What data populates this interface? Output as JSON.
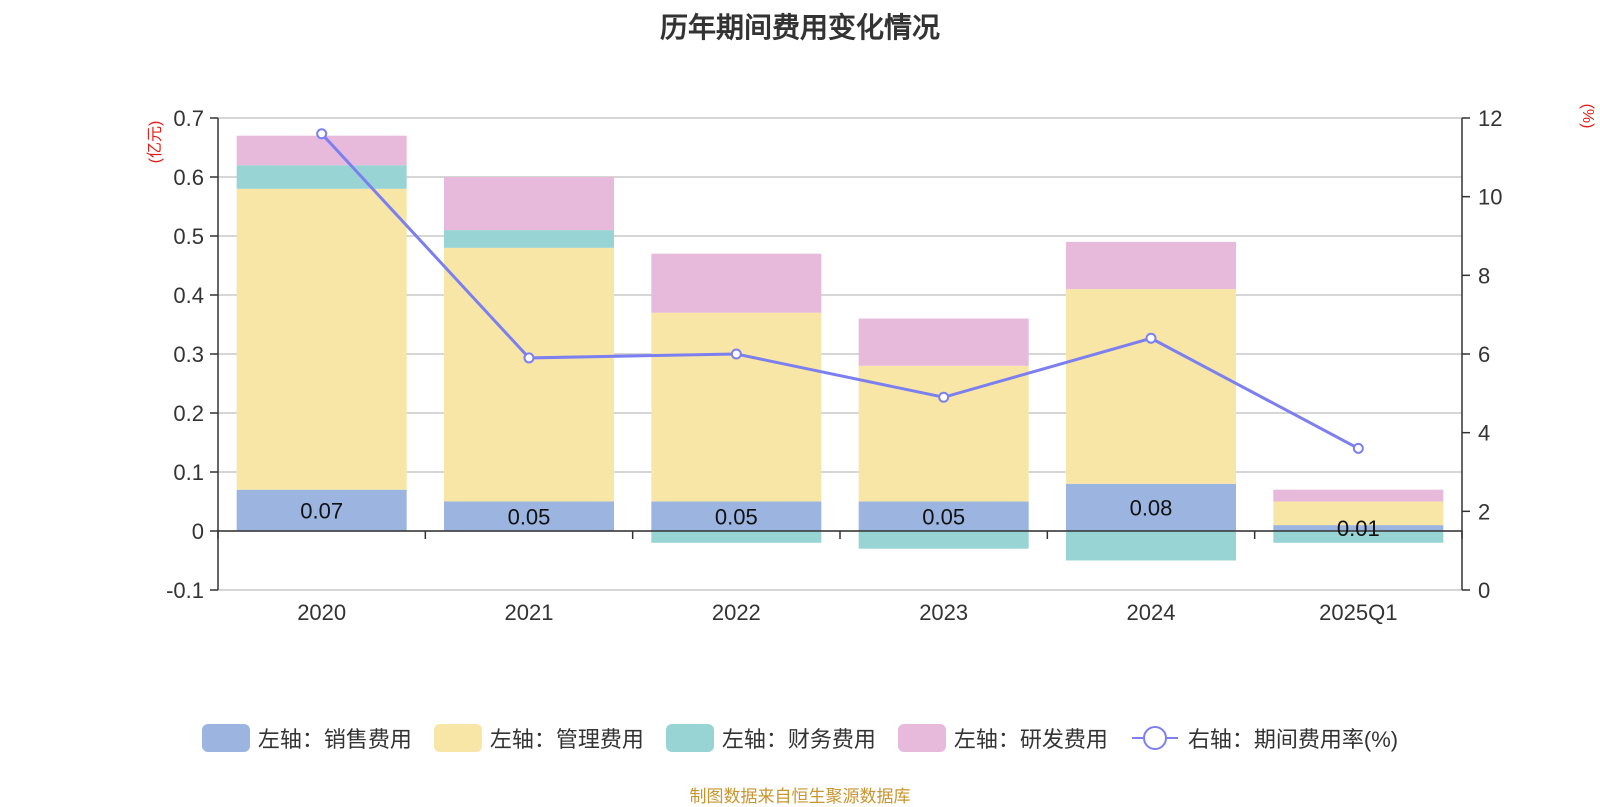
{
  "chart_data": {
    "type": "bar",
    "title": "历年期间费用变化情况",
    "categories": [
      "2020",
      "2021",
      "2022",
      "2023",
      "2024",
      "2025Q1"
    ],
    "y_left": {
      "unit_label": "(亿元)",
      "ylim": [
        -0.1,
        0.7
      ],
      "ticks": [
        "0.7",
        "0.6",
        "0.5",
        "0.4",
        "0.3",
        "0.2",
        "0.1",
        "0",
        "-0.1"
      ]
    },
    "y_right": {
      "unit_label": "(%)",
      "ylim": [
        0,
        12
      ],
      "ticks": [
        "12",
        "10",
        "8",
        "6",
        "4",
        "2",
        "0"
      ]
    },
    "series": [
      {
        "name": "左轴：销售费用",
        "type": "bar",
        "stack": true,
        "color": "#9bb5e0",
        "values": [
          0.07,
          0.05,
          0.05,
          0.05,
          0.08,
          0.01
        ],
        "labels": [
          "0.07",
          "0.05",
          "0.05",
          "0.05",
          "0.08",
          "0.01"
        ]
      },
      {
        "name": "左轴：管理费用",
        "type": "bar",
        "stack": true,
        "color": "#f8e6a6",
        "values": [
          0.51,
          0.43,
          0.32,
          0.23,
          0.33,
          0.04
        ]
      },
      {
        "name": "左轴：财务费用",
        "type": "bar",
        "stack": true,
        "color": "#98d4d4",
        "values": [
          0.04,
          0.03,
          -0.02,
          -0.03,
          -0.05,
          -0.02
        ]
      },
      {
        "name": "左轴：研发费用",
        "type": "bar",
        "stack": true,
        "color": "#e7b9da",
        "values": [
          0.05,
          0.09,
          0.1,
          0.08,
          0.08,
          0.02
        ]
      },
      {
        "name": "右轴：期间费用率(%)",
        "type": "line",
        "axis": "right",
        "color": "#7b7ff0",
        "values": [
          11.6,
          5.9,
          6.0,
          4.9,
          6.4,
          3.6
        ]
      }
    ],
    "grid": true,
    "legend_position": "bottom"
  },
  "source_note": "制图数据来自恒生聚源数据库"
}
